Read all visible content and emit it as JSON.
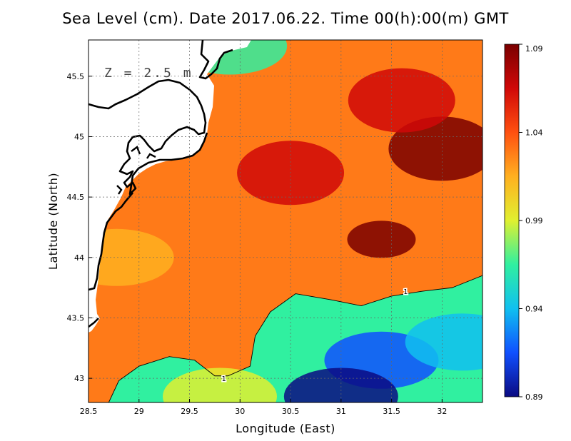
{
  "title": "Sea Level (cm). Date 2017.06.22. Time 00(h):00(m) GMT",
  "annotation": "Z = 2.5 m",
  "chart_data": {
    "type": "heatmap",
    "title": "Sea Level (cm). Date 2017.06.22. Time 00(h):00(m) GMT",
    "xlabel": "Longitude (East)",
    "ylabel": "Latitude (North)",
    "xlim": [
      28.5,
      32.4
    ],
    "ylim": [
      42.8,
      45.8
    ],
    "x_ticks": [
      "28.5",
      "29",
      "29.5",
      "30",
      "30.5",
      "31",
      "31.5",
      "32"
    ],
    "y_ticks": [
      "43",
      "43.5",
      "44",
      "44.5",
      "45",
      "45.5"
    ],
    "grid": true,
    "colorbar": {
      "ticks": [
        "1.09",
        "1.04",
        "0.99",
        "0.94",
        "0.89"
      ],
      "min": 0.89,
      "max": 1.09,
      "colors": [
        "#0a0a82",
        "#1050ff",
        "#10c0f0",
        "#30f0a0",
        "#e0f030",
        "#ffb020",
        "#ff5010",
        "#d00808",
        "#7a0000"
      ]
    },
    "contour": {
      "level_label": "1",
      "level": 1.0,
      "points": [
        [
          28.7,
          42.8
        ],
        [
          28.8,
          42.98
        ],
        [
          29.0,
          43.1
        ],
        [
          29.3,
          43.18
        ],
        [
          29.55,
          43.15
        ],
        [
          29.75,
          43.02
        ],
        [
          29.88,
          43.02
        ],
        [
          30.1,
          43.1
        ],
        [
          30.15,
          43.35
        ],
        [
          30.3,
          43.55
        ],
        [
          30.55,
          43.7
        ],
        [
          30.9,
          43.65
        ],
        [
          31.2,
          43.6
        ],
        [
          31.5,
          43.68
        ],
        [
          31.8,
          43.72
        ],
        [
          32.1,
          43.75
        ],
        [
          32.4,
          43.85
        ]
      ],
      "label_positions": [
        [
          29.84,
          43.0
        ],
        [
          31.64,
          43.72
        ]
      ]
    },
    "features": [
      {
        "name": "high",
        "lon": 31.4,
        "lat": 44.15,
        "value": 1.09
      },
      {
        "name": "high",
        "lon": 32.0,
        "lat": 44.9,
        "value": 1.08
      },
      {
        "name": "high",
        "lon": 31.6,
        "lat": 45.3,
        "value": 1.075
      },
      {
        "name": "high",
        "lon": 30.5,
        "lat": 44.7,
        "value": 1.06
      },
      {
        "name": "low",
        "lon": 31.4,
        "lat": 43.15,
        "value": 0.905
      },
      {
        "name": "low",
        "lon": 31.0,
        "lat": 42.85,
        "value": 0.9
      },
      {
        "name": "low",
        "lon": 32.2,
        "lat": 43.3,
        "value": 0.93
      },
      {
        "name": "low",
        "lon": 29.8,
        "lat": 42.85,
        "value": 0.98
      },
      {
        "name": "low",
        "lon": 29.9,
        "lat": 45.75,
        "value": 0.975
      },
      {
        "name": "low",
        "lon": 28.78,
        "lat": 44.0,
        "value": 1.02
      }
    ],
    "land_color": "#ffffff",
    "coastline_color": "#000000"
  }
}
